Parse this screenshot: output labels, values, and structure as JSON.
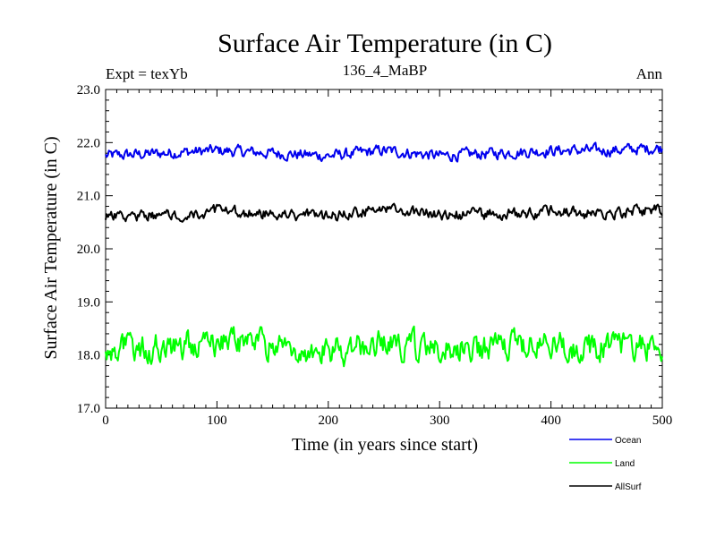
{
  "chart_data": {
    "type": "line",
    "title": "Surface Air Temperature (in C)",
    "subtitle": "136_4_MaBP",
    "expt_label": "Expt = texYb",
    "season_label": "Ann",
    "xlabel": "Time (in years since start)",
    "ylabel": "Surface Air Temperature (in C)",
    "xlim": [
      0,
      500
    ],
    "ylim": [
      17.0,
      23.0
    ],
    "x_ticks": [
      0,
      100,
      200,
      300,
      400,
      500
    ],
    "x_tick_labels": [
      "0",
      "100",
      "200",
      "300",
      "400",
      "500"
    ],
    "y_ticks": [
      17.0,
      18.0,
      19.0,
      20.0,
      21.0,
      22.0,
      23.0
    ],
    "y_tick_labels": [
      "17.0",
      "18.0",
      "19.0",
      "20.0",
      "21.0",
      "22.0",
      "23.0"
    ],
    "grid": false,
    "legend_position": "bottom-right",
    "x_step": 50,
    "series": [
      {
        "name": "Ocean",
        "color": "#0000ee",
        "x": [
          0,
          50,
          100,
          150,
          200,
          250,
          300,
          350,
          400,
          450,
          500
        ],
        "values": [
          21.75,
          21.8,
          21.85,
          21.8,
          21.75,
          21.85,
          21.75,
          21.8,
          21.85,
          21.85,
          21.9
        ]
      },
      {
        "name": "Land",
        "color": "#00ff00",
        "x": [
          0,
          50,
          100,
          150,
          200,
          250,
          300,
          350,
          400,
          450,
          500
        ],
        "values": [
          18.1,
          18.15,
          18.25,
          18.2,
          18.05,
          18.2,
          18.1,
          18.15,
          18.2,
          18.15,
          18.2
        ]
      },
      {
        "name": "AllSurf",
        "color": "#000000",
        "x": [
          0,
          50,
          100,
          150,
          200,
          250,
          300,
          350,
          400,
          450,
          500
        ],
        "values": [
          20.6,
          20.65,
          20.7,
          20.65,
          20.6,
          20.75,
          20.65,
          20.65,
          20.7,
          20.65,
          20.75
        ]
      }
    ]
  }
}
